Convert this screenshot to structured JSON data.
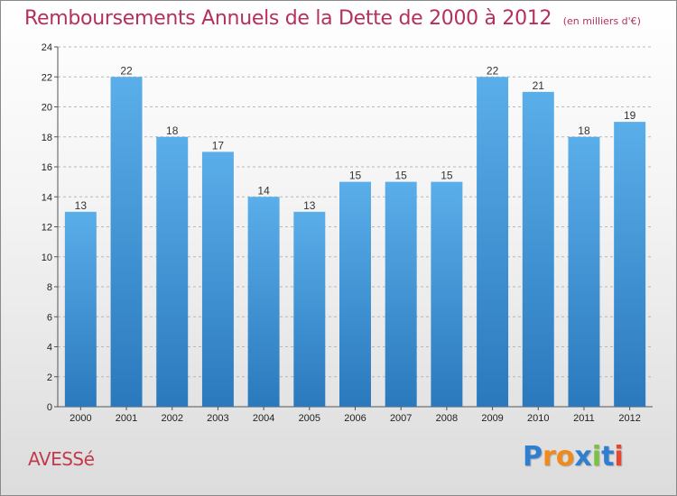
{
  "header": {
    "title": "Remboursements Annuels de la Dette de 2000 à 2012",
    "subtitle": "(en milliers d'€)"
  },
  "footer": {
    "commune": "AVESSé",
    "brand_letters": [
      "P",
      "r",
      "o",
      "x",
      "i",
      "t",
      "i"
    ],
    "brand_colors": [
      "#2f7fd0",
      "#f08a1c",
      "#f08a1c",
      "#2f7fd0",
      "#7cc242",
      "#2f7fd0",
      "#e8472f"
    ]
  },
  "chart_data": {
    "type": "bar",
    "categories": [
      "2000",
      "2001",
      "2002",
      "2003",
      "2004",
      "2005",
      "2006",
      "2007",
      "2008",
      "2009",
      "2010",
      "2011",
      "2012"
    ],
    "values": [
      13,
      22,
      18,
      17,
      14,
      13,
      15,
      15,
      15,
      22,
      21,
      18,
      19
    ],
    "title": "Remboursements Annuels de la Dette de 2000 à 2012",
    "xlabel": "",
    "ylabel": "",
    "ylim": [
      0,
      24
    ],
    "yticks": [
      0,
      2,
      4,
      6,
      8,
      10,
      12,
      14,
      16,
      18,
      20,
      22,
      24
    ],
    "grid": true,
    "colors": {
      "bar_top": "#5aaee9",
      "bar_bottom": "#2a79bd",
      "grid": "#b8b8b8",
      "axis": "#555555"
    }
  }
}
